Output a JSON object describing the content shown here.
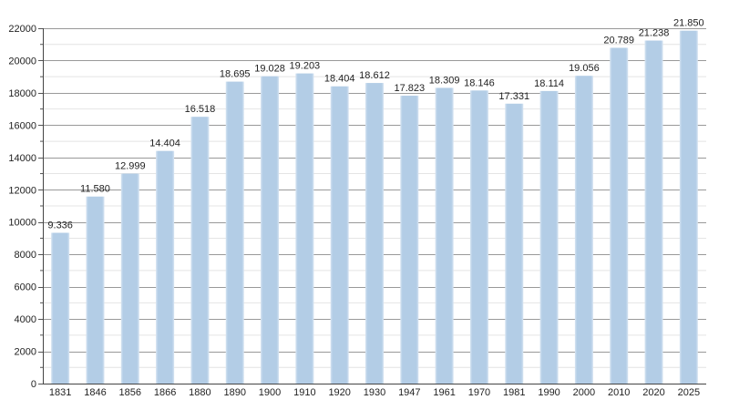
{
  "chart_data": {
    "type": "bar",
    "categories": [
      "1831",
      "1846",
      "1856",
      "1866",
      "1880",
      "1890",
      "1900",
      "1910",
      "1920",
      "1930",
      "1947",
      "1961",
      "1970",
      "1981",
      "1990",
      "2000",
      "2010",
      "2020",
      "2025"
    ],
    "values": [
      9336,
      11580,
      12999,
      14404,
      16518,
      18695,
      19028,
      19203,
      18404,
      18612,
      17823,
      18309,
      18146,
      17331,
      18114,
      19056,
      20789,
      21238,
      21850
    ],
    "value_labels": [
      "9.336",
      "11.580",
      "12.999",
      "14.404",
      "16.518",
      "18.695",
      "19.028",
      "19.203",
      "18.404",
      "18.612",
      "17.823",
      "18.309",
      "18.146",
      "17.331",
      "18.114",
      "19.056",
      "20.789",
      "21.238",
      "21.850"
    ],
    "ylim": [
      0,
      22000
    ],
    "yticks": [
      0,
      2000,
      4000,
      6000,
      8000,
      10000,
      12000,
      14000,
      16000,
      18000,
      20000,
      22000
    ],
    "grid": true,
    "bar_color": "#b3cde6",
    "grid_color": "#999999"
  }
}
